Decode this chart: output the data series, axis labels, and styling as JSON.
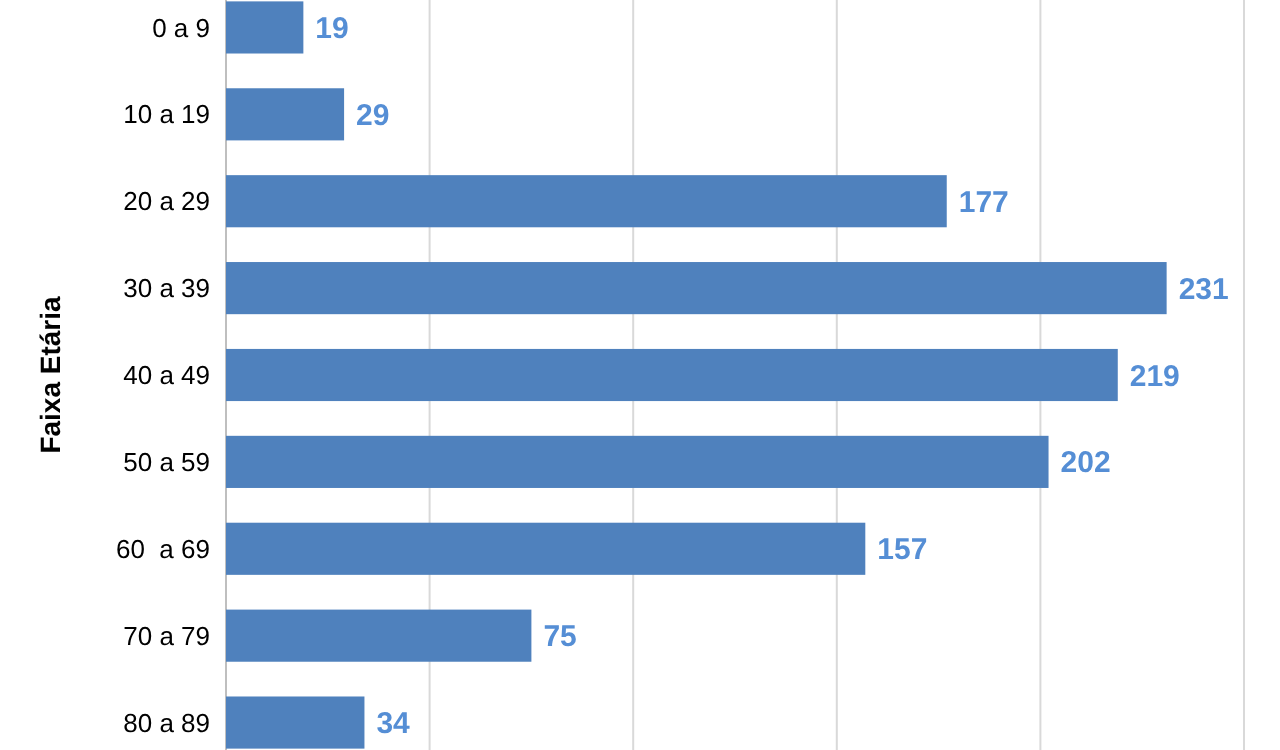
{
  "chart_data": {
    "type": "bar",
    "orientation": "horizontal",
    "ylabel": "Faixa Etária",
    "categories": [
      "0 a 9",
      "10 a 19",
      "20 a 29",
      "30 a 39",
      "40 a 49",
      "50 a 59",
      "60  a 69",
      "70 a 79",
      "80 a 89"
    ],
    "values": [
      19,
      29,
      177,
      231,
      219,
      202,
      157,
      75,
      34
    ],
    "color": "#4f81bd",
    "data_labels": true,
    "grid": "x",
    "xlim": [
      0,
      250
    ],
    "xticks": [
      {
        "value": 50,
        "label": null
      },
      {
        "value": 100,
        "label": null
      },
      {
        "value": 150,
        "label": null
      },
      {
        "value": 200,
        "label": null
      },
      {
        "value": 250,
        "label": null
      }
    ],
    "tick_labels": "y"
  }
}
